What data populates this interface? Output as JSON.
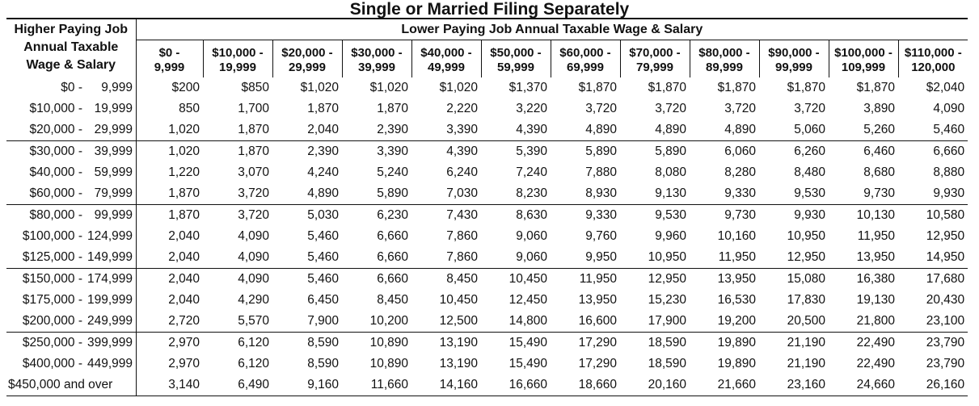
{
  "title": "Single or Married Filing Separately",
  "row_header": [
    "Higher Paying Job",
    "Annual Taxable",
    "Wage & Salary"
  ],
  "col_header_title": "Lower Paying Job Annual Taxable Wage & Salary",
  "columns": [
    [
      "$0 -",
      "9,999"
    ],
    [
      "$10,000 -",
      "19,999"
    ],
    [
      "$20,000 -",
      "29,999"
    ],
    [
      "$30,000 -",
      "39,999"
    ],
    [
      "$40,000 -",
      "49,999"
    ],
    [
      "$50,000 -",
      "59,999"
    ],
    [
      "$60,000 -",
      "69,999"
    ],
    [
      "$70,000 -",
      "79,999"
    ],
    [
      "$80,000 -",
      "89,999"
    ],
    [
      "$90,000 -",
      "99,999"
    ],
    [
      "$100,000 -",
      "109,999"
    ],
    [
      "$110,000 -",
      "120,000"
    ]
  ],
  "rows": [
    {
      "label": [
        "$0 -",
        "9,999"
      ],
      "values": [
        "$200",
        "$850",
        "$1,020",
        "$1,020",
        "$1,020",
        "$1,370",
        "$1,870",
        "$1,870",
        "$1,870",
        "$1,870",
        "$1,870",
        "$2,040"
      ]
    },
    {
      "label": [
        "$10,000 -",
        "19,999"
      ],
      "values": [
        "850",
        "1,700",
        "1,870",
        "1,870",
        "2,220",
        "3,220",
        "3,720",
        "3,720",
        "3,720",
        "3,720",
        "3,890",
        "4,090"
      ]
    },
    {
      "label": [
        "$20,000 -",
        "29,999"
      ],
      "values": [
        "1,020",
        "1,870",
        "2,040",
        "2,390",
        "3,390",
        "4,390",
        "4,890",
        "4,890",
        "4,890",
        "5,060",
        "5,260",
        "5,460"
      ]
    },
    {
      "label": [
        "$30,000 -",
        "39,999"
      ],
      "values": [
        "1,020",
        "1,870",
        "2,390",
        "3,390",
        "4,390",
        "5,390",
        "5,890",
        "5,890",
        "6,060",
        "6,260",
        "6,460",
        "6,660"
      ],
      "group_start": true
    },
    {
      "label": [
        "$40,000 -",
        "59,999"
      ],
      "values": [
        "1,220",
        "3,070",
        "4,240",
        "5,240",
        "6,240",
        "7,240",
        "7,880",
        "8,080",
        "8,280",
        "8,480",
        "8,680",
        "8,880"
      ]
    },
    {
      "label": [
        "$60,000 -",
        "79,999"
      ],
      "values": [
        "1,870",
        "3,720",
        "4,890",
        "5,890",
        "7,030",
        "8,230",
        "8,930",
        "9,130",
        "9,330",
        "9,530",
        "9,730",
        "9,930"
      ]
    },
    {
      "label": [
        "$80,000 -",
        "99,999"
      ],
      "values": [
        "1,870",
        "3,720",
        "5,030",
        "6,230",
        "7,430",
        "8,630",
        "9,330",
        "9,530",
        "9,730",
        "9,930",
        "10,130",
        "10,580"
      ],
      "group_start": true
    },
    {
      "label": [
        "$100,000 -",
        "124,999"
      ],
      "values": [
        "2,040",
        "4,090",
        "5,460",
        "6,660",
        "7,860",
        "9,060",
        "9,760",
        "9,960",
        "10,160",
        "10,950",
        "11,950",
        "12,950"
      ]
    },
    {
      "label": [
        "$125,000 -",
        "149,999"
      ],
      "values": [
        "2,040",
        "4,090",
        "5,460",
        "6,660",
        "7,860",
        "9,060",
        "9,950",
        "10,950",
        "11,950",
        "12,950",
        "13,950",
        "14,950"
      ]
    },
    {
      "label": [
        "$150,000 -",
        "174,999"
      ],
      "values": [
        "2,040",
        "4,090",
        "5,460",
        "6,660",
        "8,450",
        "10,450",
        "11,950",
        "12,950",
        "13,950",
        "15,080",
        "16,380",
        "17,680"
      ],
      "group_start": true
    },
    {
      "label": [
        "$175,000 -",
        "199,999"
      ],
      "values": [
        "2,040",
        "4,290",
        "6,450",
        "8,450",
        "10,450",
        "12,450",
        "13,950",
        "15,230",
        "16,530",
        "17,830",
        "19,130",
        "20,430"
      ]
    },
    {
      "label": [
        "$200,000 -",
        "249,999"
      ],
      "values": [
        "2,720",
        "5,570",
        "7,900",
        "10,200",
        "12,500",
        "14,800",
        "16,600",
        "17,900",
        "19,200",
        "20,500",
        "21,800",
        "23,100"
      ]
    },
    {
      "label": [
        "$250,000 -",
        "399,999"
      ],
      "values": [
        "2,970",
        "6,120",
        "8,590",
        "10,890",
        "13,190",
        "15,490",
        "17,290",
        "18,590",
        "19,890",
        "21,190",
        "22,490",
        "23,790"
      ],
      "group_start": true
    },
    {
      "label": [
        "$400,000 -",
        "449,999"
      ],
      "values": [
        "2,970",
        "6,120",
        "8,590",
        "10,890",
        "13,190",
        "15,490",
        "17,290",
        "18,590",
        "19,890",
        "21,190",
        "22,490",
        "23,790"
      ]
    },
    {
      "label": [
        "$450,000 and over"
      ],
      "values": [
        "3,140",
        "6,490",
        "9,160",
        "11,660",
        "14,160",
        "16,660",
        "18,660",
        "20,160",
        "21,660",
        "23,160",
        "24,660",
        "26,160"
      ]
    }
  ]
}
